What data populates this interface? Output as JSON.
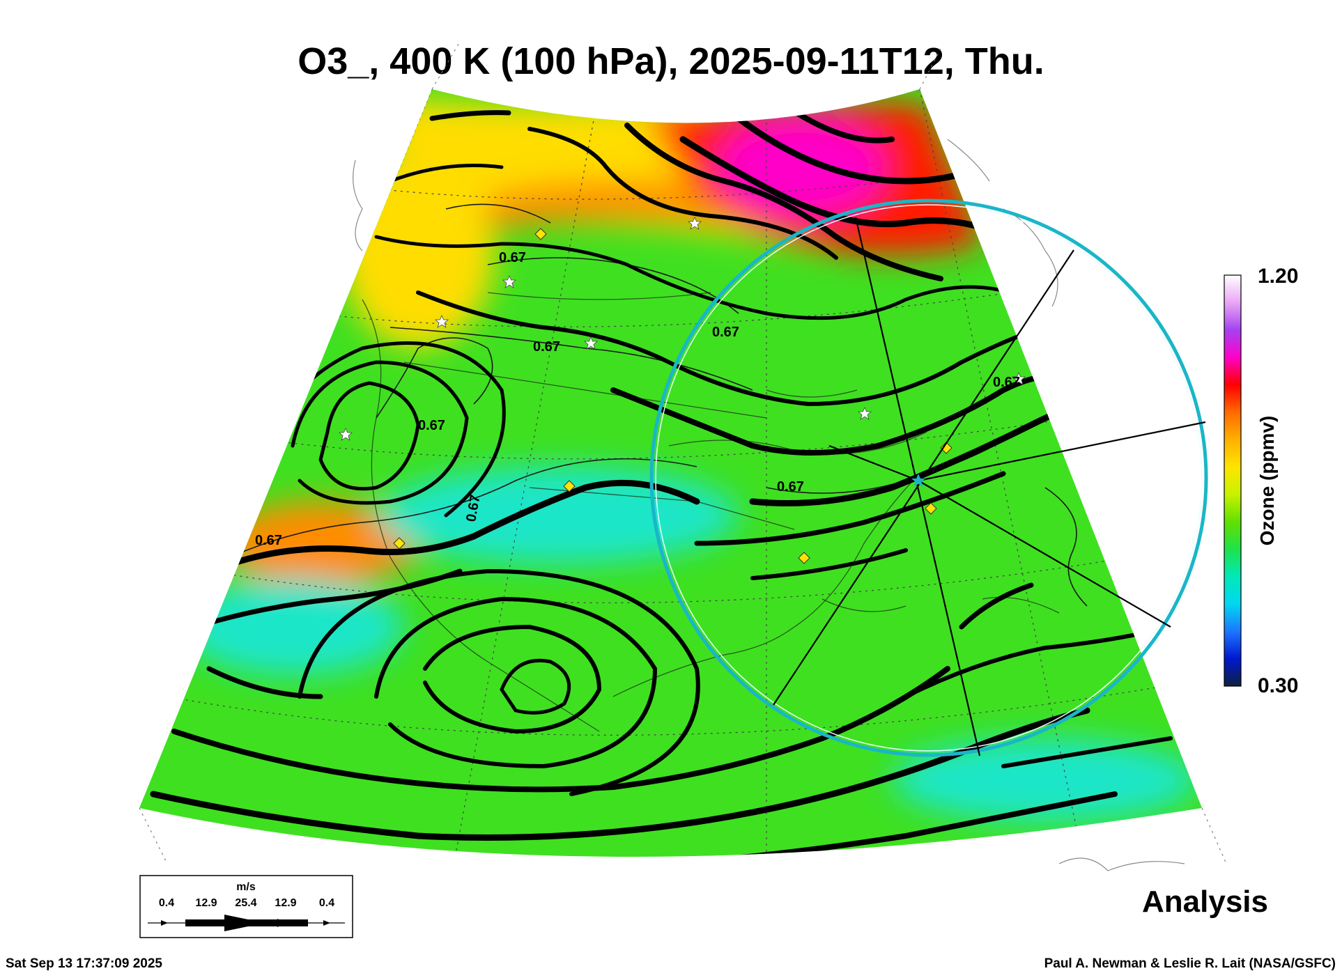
{
  "title": "O3_, 400 K (100 hPa), 2025-09-11T12, Thu.",
  "colorbar": {
    "label": "Ozone (ppmv)",
    "max_label": "1.20",
    "min_label": "0.30",
    "min": 0.3,
    "max": 1.2,
    "colors": [
      "#ffffff",
      "#e9a6f5",
      "#a542f2",
      "#ff00c8",
      "#ff0000",
      "#ff6a00",
      "#ffb000",
      "#ffe400",
      "#c8f200",
      "#62e000",
      "#1fe24a",
      "#00e8b8",
      "#00d8f0",
      "#1e76ff",
      "#0018d0",
      "#102040"
    ]
  },
  "contour_labels": [
    "0.67",
    "0.67",
    "0.67",
    "0.67",
    "0.67",
    "0.67",
    "0.67",
    "0.67"
  ],
  "wind_legend": {
    "unit": "m/s",
    "values": [
      "0.4",
      "12.9",
      "25.4",
      "12.9",
      "0.4"
    ]
  },
  "status": "Analysis",
  "footer": {
    "timestamp": "Sat Sep 13 17:37:09 2025",
    "credit": "Paul A. Newman & Leslie R. Lait (NASA/GSFC)"
  },
  "map_colors": {
    "field_green": "#3fe020",
    "field_yellow": "#ffdd00",
    "field_orange": "#ff8c00",
    "field_red": "#ff1a00",
    "field_magenta": "#ff00c8",
    "field_cyan": "#1ee6c8",
    "circle": "#1ab6c8",
    "star": "#ffffff",
    "diamond": "#ffe400"
  }
}
